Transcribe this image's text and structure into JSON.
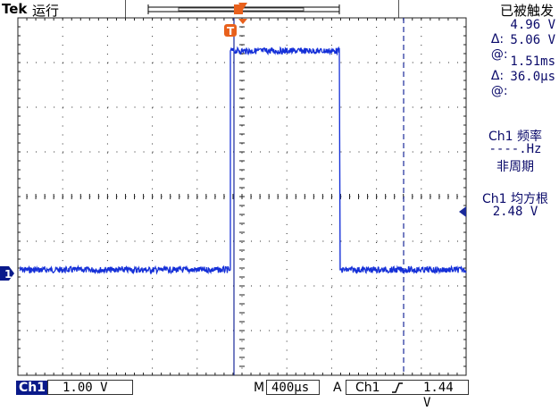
{
  "header": {
    "brand": "Tek",
    "run_state": "运行",
    "trigger_state": "已被触发"
  },
  "trigger_marker_label": "T",
  "channel_marker_label": "1",
  "cursors": {
    "delta_label": "Δ:",
    "at_label": "@:",
    "v_delta": "4.96 V",
    "v_at": "5.06 V",
    "t_delta": "1.51ms",
    "t_at": "36.0µs"
  },
  "measurements": {
    "freq_title": "Ch1 频率",
    "freq_value": "----.Hz",
    "freq_note": "非周期",
    "rms_title": "Ch1 均方根",
    "rms_value": "2.48 V"
  },
  "footer": {
    "ch_label": "Ch1",
    "ch_scale": "1.00 V",
    "timebase_label": "M",
    "timebase": "400µs",
    "trigger_mode": "A",
    "trigger_source": "Ch1",
    "trigger_slope_icon": "rising-edge-icon",
    "trigger_level": "1.44 V"
  },
  "colors": {
    "trace": "#1530d8",
    "trigger_orange": "#e8601c",
    "grid": "#222222",
    "cursor": "#1a2a9a"
  }
}
